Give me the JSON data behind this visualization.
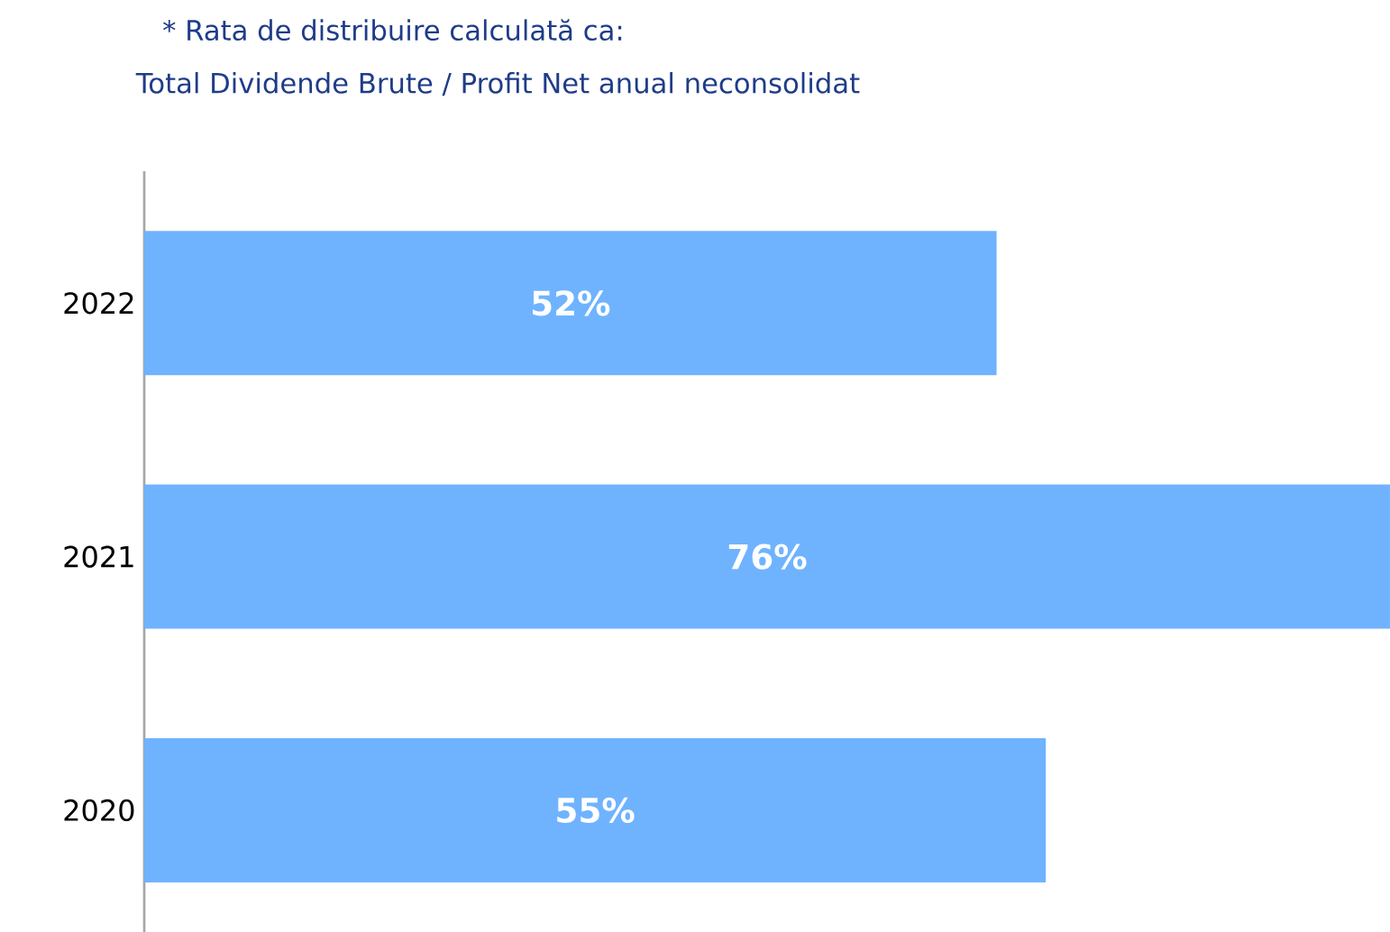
{
  "chart_data": {
    "type": "bar",
    "orientation": "horizontal",
    "title": "* Rata de distribuire calculată ca:",
    "subtitle": "Total Dividende Brute / Profit Net anual neconsolidat",
    "categories": [
      "2022",
      "2021",
      "2020"
    ],
    "values": [
      52,
      76,
      55
    ],
    "value_labels": [
      "52%",
      "76%",
      "55%"
    ],
    "color": "#6fb3ff"
  }
}
